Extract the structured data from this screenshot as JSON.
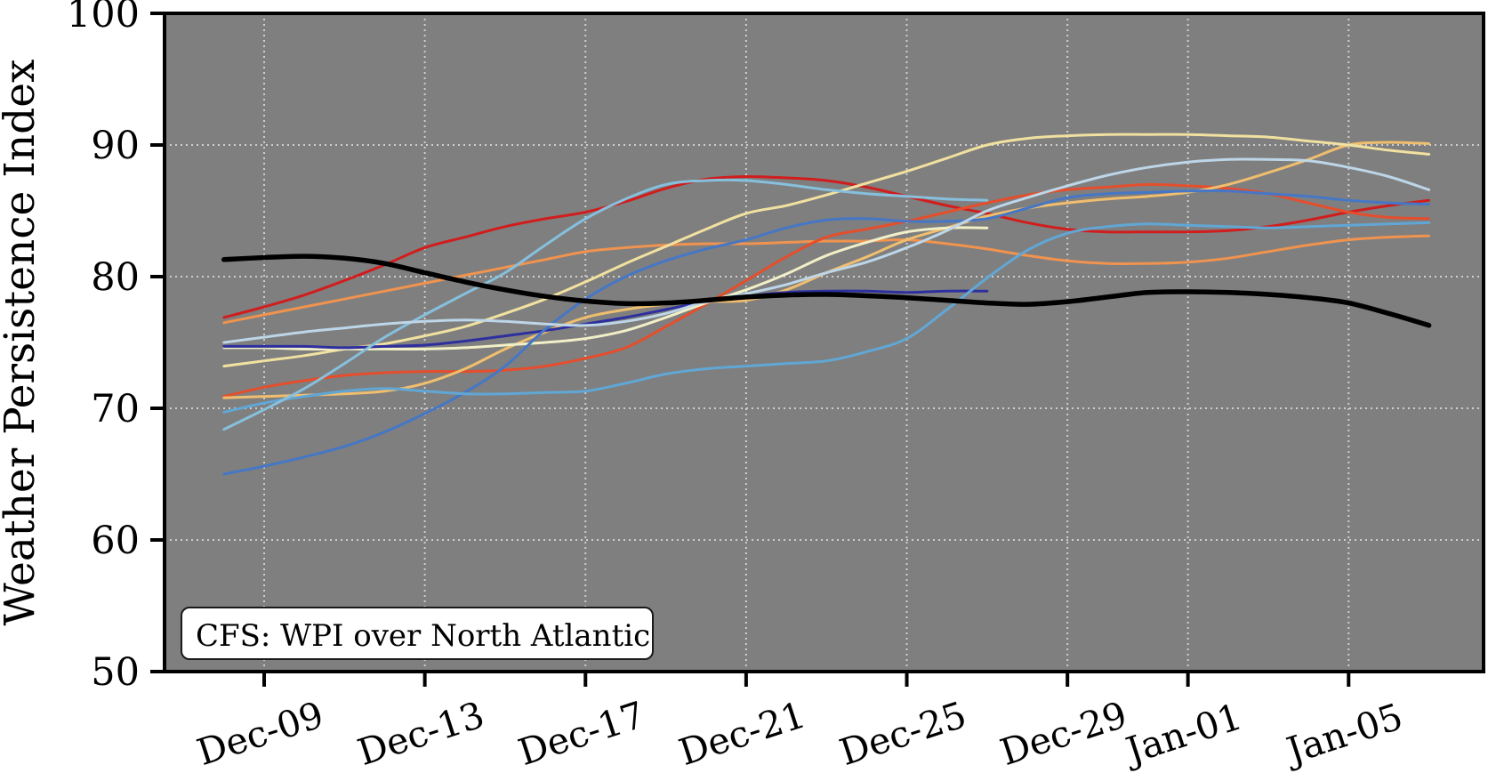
{
  "figure": {
    "ylabel": "Weather Persistence Index",
    "annotation": "CFS: WPI over North Atlantic"
  },
  "chart_data": {
    "type": "line",
    "title": "",
    "xlabel": "",
    "ylabel": "Weather Persistence Index",
    "annotation": "CFS: WPI over North Atlantic",
    "grid": true,
    "legend": "none",
    "plot_bg": "#7f7f7f",
    "grid_color": "#dcdcdc",
    "spine_color": "#000000",
    "ylim": [
      50,
      100
    ],
    "yticks": [
      50,
      60,
      70,
      80,
      90,
      100
    ],
    "ygrid_values": [
      60,
      70,
      80,
      90
    ],
    "x_unit": "days since Dec-08",
    "xlim_days": [
      -1.48,
      31.36
    ],
    "xticks": [
      {
        "day": 1,
        "label": "Dec-09"
      },
      {
        "day": 5,
        "label": "Dec-13"
      },
      {
        "day": 9,
        "label": "Dec-17"
      },
      {
        "day": 13,
        "label": "Dec-21"
      },
      {
        "day": 17,
        "label": "Dec-25"
      },
      {
        "day": 21,
        "label": "Dec-29"
      },
      {
        "day": 24,
        "label": "Jan-01"
      },
      {
        "day": 28,
        "label": "Jan-05"
      }
    ],
    "series": [
      {
        "name": "ens-01-red",
        "color": "#d11d1d",
        "width": 3,
        "start_day": 0,
        "values": [
          76.9,
          77.7,
          78.6,
          79.7,
          80.9,
          82.2,
          83.0,
          83.8,
          84.4,
          84.9,
          85.7,
          86.7,
          87.4,
          87.6,
          87.5,
          87.3,
          86.8,
          86.1,
          85.4,
          84.8,
          84.1,
          83.6,
          83.4,
          83.4,
          83.4,
          83.5,
          83.8,
          84.3,
          84.9,
          85.4,
          85.8
        ]
      },
      {
        "name": "ens-02-orange",
        "color": "#f0934f",
        "width": 3,
        "start_day": 0,
        "values": [
          76.5,
          77.1,
          77.7,
          78.3,
          78.9,
          79.5,
          80.1,
          80.7,
          81.3,
          81.9,
          82.2,
          82.4,
          82.5,
          82.5,
          82.6,
          82.7,
          82.7,
          82.8,
          82.5,
          82.1,
          81.6,
          81.2,
          81.0,
          81.0,
          81.1,
          81.4,
          81.9,
          82.4,
          82.8,
          83.0,
          83.1
        ]
      },
      {
        "name": "ens-03-tomato",
        "color": "#e54e2c",
        "width": 3,
        "start_day": 0,
        "values": [
          70.9,
          71.6,
          72.1,
          72.5,
          72.7,
          72.8,
          72.8,
          72.9,
          73.2,
          73.8,
          74.6,
          76.2,
          77.9,
          79.7,
          81.5,
          83.0,
          83.6,
          84.2,
          84.9,
          85.6,
          86.2,
          86.6,
          86.8,
          87.0,
          86.9,
          86.7,
          86.3,
          85.6,
          84.9,
          84.5,
          84.4
        ]
      },
      {
        "name": "ens-04-gold",
        "color": "#efbe6e",
        "width": 3,
        "start_day": 0,
        "values": [
          70.8,
          70.9,
          71.0,
          71.1,
          71.3,
          71.9,
          73.0,
          74.5,
          75.8,
          76.9,
          77.5,
          77.9,
          78.1,
          78.2,
          79.0,
          80.3,
          81.5,
          82.8,
          83.7,
          84.6,
          85.2,
          85.6,
          85.9,
          86.1,
          86.4,
          87.0,
          87.9,
          88.9,
          90.0,
          90.2,
          90.1
        ]
      },
      {
        "name": "ens-05-khaki",
        "color": "#f1e1a0",
        "width": 3,
        "start_day": 0,
        "values": [
          73.2,
          73.6,
          74.0,
          74.5,
          74.9,
          75.5,
          76.2,
          77.2,
          78.3,
          79.6,
          81.0,
          82.3,
          83.6,
          84.8,
          85.4,
          86.2,
          87.1,
          88.0,
          89.0,
          90.0,
          90.5,
          90.7,
          90.8,
          90.8,
          90.8,
          90.7,
          90.6,
          90.3,
          90.0,
          89.6,
          89.3
        ]
      },
      {
        "name": "ens-06-beige",
        "color": "#f1efc7",
        "width": 3,
        "start_day": 0,
        "values": [
          74.6,
          74.6,
          74.5,
          74.5,
          74.5,
          74.5,
          74.6,
          74.8,
          75.0,
          75.3,
          75.9,
          76.9,
          78.0,
          79.0,
          80.2,
          81.6,
          82.6,
          83.4,
          83.7,
          83.7
        ]
      },
      {
        "name": "ens-07-navy",
        "color": "#2e2f9f",
        "width": 3,
        "start_day": 0,
        "values": [
          74.7,
          74.7,
          74.7,
          74.6,
          74.7,
          74.8,
          75.1,
          75.5,
          75.9,
          76.4,
          76.9,
          77.5,
          78.1,
          78.5,
          78.8,
          78.9,
          78.9,
          78.8,
          78.9,
          78.9
        ]
      },
      {
        "name": "ens-08-steelblue",
        "color": "#4577c6",
        "width": 3,
        "start_day": 0,
        "values": [
          65.0,
          65.6,
          66.3,
          67.1,
          68.2,
          69.6,
          71.2,
          73.2,
          76.0,
          78.3,
          80.0,
          81.2,
          82.1,
          82.8,
          83.7,
          84.3,
          84.4,
          84.2,
          84.2,
          84.4,
          85.2,
          86.0,
          86.3,
          86.4,
          86.5,
          86.5,
          86.3,
          86.1,
          85.8,
          85.6,
          85.5
        ]
      },
      {
        "name": "ens-09-skyblue",
        "color": "#61a7d5",
        "width": 3,
        "start_day": 0,
        "values": [
          69.7,
          70.4,
          70.9,
          71.3,
          71.5,
          71.3,
          71.1,
          71.1,
          71.2,
          71.3,
          71.9,
          72.6,
          73.0,
          73.2,
          73.4,
          73.6,
          74.3,
          75.3,
          77.5,
          79.9,
          82.0,
          83.3,
          83.8,
          84.0,
          83.9,
          83.8,
          83.7,
          83.8,
          83.9,
          84.0,
          84.1
        ]
      },
      {
        "name": "ens-10-lightblue",
        "color": "#86c0dd",
        "width": 3,
        "start_day": 0,
        "values": [
          68.4,
          69.9,
          71.5,
          73.4,
          75.4,
          77.1,
          78.7,
          80.3,
          82.4,
          84.4,
          85.9,
          87.0,
          87.3,
          87.3,
          87.0,
          86.6,
          86.3,
          86.1,
          85.9,
          85.8
        ]
      },
      {
        "name": "ens-11-lightsteel",
        "color": "#bdd6e8",
        "width": 3,
        "start_day": 0,
        "values": [
          75.0,
          75.4,
          75.8,
          76.1,
          76.4,
          76.6,
          76.7,
          76.6,
          76.4,
          76.3,
          76.6,
          77.2,
          78.1,
          78.7,
          79.4,
          80.3,
          81.1,
          82.2,
          83.5,
          85.0,
          86.0,
          86.9,
          87.7,
          88.3,
          88.7,
          88.9,
          88.9,
          88.8,
          88.3,
          87.6,
          86.6
        ]
      },
      {
        "name": "ensemble-mean",
        "color": "#000000",
        "width": 5.5,
        "start_day": 0,
        "values": [
          81.3,
          81.45,
          81.55,
          81.4,
          81.0,
          80.3,
          79.6,
          79.0,
          78.5,
          78.15,
          77.95,
          78.0,
          78.2,
          78.45,
          78.6,
          78.65,
          78.55,
          78.4,
          78.2,
          78.0,
          77.9,
          78.1,
          78.45,
          78.8,
          78.85,
          78.8,
          78.65,
          78.4,
          78.0,
          77.2,
          76.3
        ]
      }
    ]
  }
}
